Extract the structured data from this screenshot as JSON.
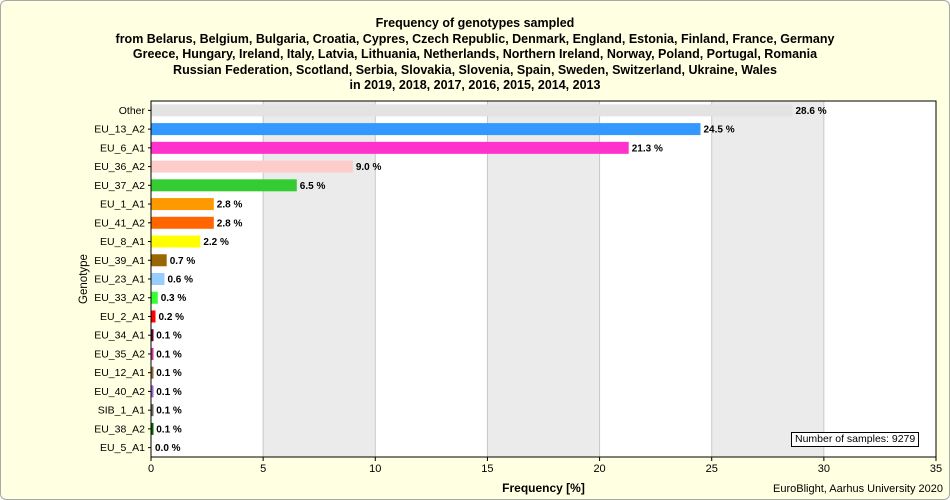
{
  "chart_data": {
    "type": "bar",
    "orientation": "horizontal",
    "title_lines": [
      "Frequency of genotypes sampled",
      "from Belarus, Belgium, Bulgaria, Croatia, Cypres, Czech Republic, Denmark, England, Estonia, Finland, France, Germany",
      "Greece, Hungary, Ireland, Italy, Latvia, Lithuania, Netherlands, Northern Ireland, Norway, Poland, Portugal, Romania",
      "Russian Federation, Scotland, Serbia, Slovakia, Slovenia, Spain, Sweden, Switzerland, Ukraine, Wales",
      "in 2019, 2018, 2017, 2016, 2015, 2014, 2013"
    ],
    "xlabel": "Frequency [%]",
    "ylabel": "Genotype",
    "xlim": [
      0,
      35
    ],
    "xticks": [
      0,
      5,
      10,
      15,
      20,
      25,
      30,
      35
    ],
    "grid": "alternating vertical bands",
    "categories": [
      "Other",
      "EU_13_A2",
      "EU_6_A1",
      "EU_36_A2",
      "EU_37_A2",
      "EU_1_A1",
      "EU_41_A2",
      "EU_8_A1",
      "EU_39_A1",
      "EU_23_A1",
      "EU_33_A2",
      "EU_2_A1",
      "EU_34_A1",
      "EU_35_A2",
      "EU_12_A1",
      "EU_40_A2",
      "SIB_1_A1",
      "EU_38_A2",
      "EU_5_A1"
    ],
    "values": [
      28.6,
      24.5,
      21.3,
      9.0,
      6.5,
      2.8,
      2.8,
      2.2,
      0.7,
      0.6,
      0.3,
      0.2,
      0.1,
      0.1,
      0.1,
      0.1,
      0.1,
      0.1,
      0.0
    ],
    "value_labels": [
      "28.6 %",
      "24.5 %",
      "21.3 %",
      "9.0 %",
      "6.5 %",
      "2.8 %",
      "2.8 %",
      "2.2 %",
      "0.7 %",
      "0.6 %",
      "0.3 %",
      "0.2 %",
      "0.1 %",
      "0.1 %",
      "0.1 %",
      "0.1 %",
      "0.1 %",
      "0.1 %",
      "0.0 %"
    ],
    "colors": [
      "#e3e3e3",
      "#3399ff",
      "#ff33cc",
      "#ffcccc",
      "#33cc33",
      "#ff9900",
      "#ff6600",
      "#ffff00",
      "#996600",
      "#99ccff",
      "#33ff33",
      "#ff0000",
      "#660033",
      "#cc3399",
      "#996633",
      "#9966cc",
      "#666666",
      "#006600",
      "#000000"
    ],
    "annotation": "Number of samples: 9279"
  },
  "footer": "EuroBlight, Aarhus University 2020"
}
